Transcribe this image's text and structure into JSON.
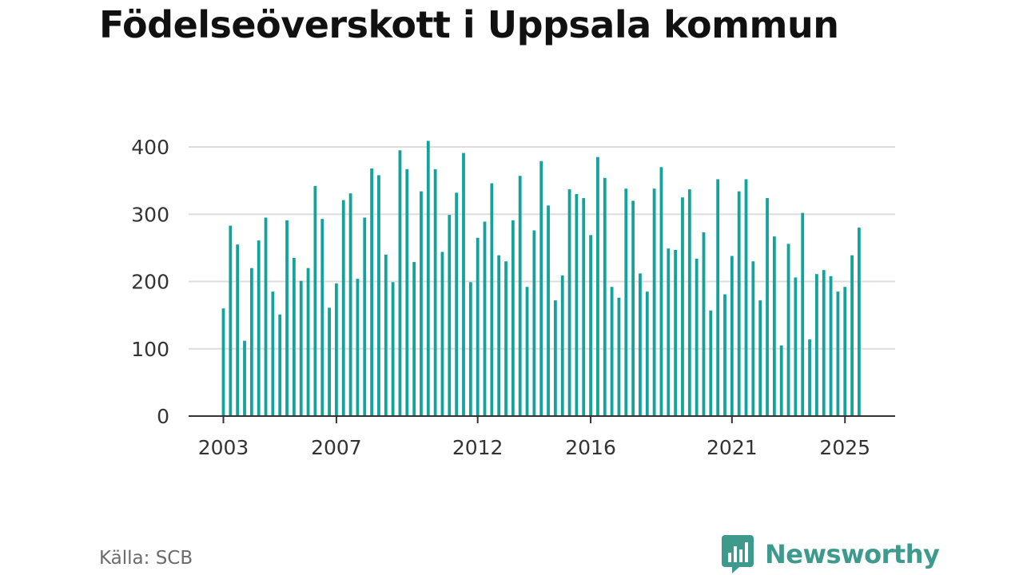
{
  "header": {
    "title": "Födelseöverskott i Uppsala kommun"
  },
  "footer": {
    "source": "Källa: SCB",
    "brand": "Newsworthy"
  },
  "colors": {
    "bar": "#14a39a",
    "grid": "#dddddd",
    "axis": "#333333",
    "brand": "#3d9a8d"
  },
  "chart_data": {
    "type": "bar",
    "title": "Födelseöverskott i Uppsala kommun",
    "xlabel": "",
    "ylabel": "",
    "ylim": [
      0,
      400
    ],
    "yticks": [
      0,
      100,
      200,
      300,
      400
    ],
    "xtick_labels": [
      "2003",
      "2007",
      "2012",
      "2016",
      "2021",
      "2025"
    ],
    "grid": true,
    "legend": "none",
    "start": "2003-01",
    "frequency": "quarterly",
    "categories": [
      "2003-Q1",
      "2003-Q2",
      "2003-Q3",
      "2003-Q4",
      "2004-Q1",
      "2004-Q2",
      "2004-Q3",
      "2004-Q4",
      "2005-Q1",
      "2005-Q2",
      "2005-Q3",
      "2005-Q4",
      "2006-Q1",
      "2006-Q2",
      "2006-Q3",
      "2006-Q4",
      "2007-Q1",
      "2007-Q2",
      "2007-Q3",
      "2007-Q4",
      "2008-Q1",
      "2008-Q2",
      "2008-Q3",
      "2008-Q4",
      "2009-Q1",
      "2009-Q2",
      "2009-Q3",
      "2009-Q4",
      "2010-Q1",
      "2010-Q2",
      "2010-Q3",
      "2010-Q4",
      "2011-Q1",
      "2011-Q2",
      "2011-Q3",
      "2011-Q4",
      "2012-Q1",
      "2012-Q2",
      "2012-Q3",
      "2012-Q4",
      "2013-Q1",
      "2013-Q2",
      "2013-Q3",
      "2013-Q4",
      "2014-Q1",
      "2014-Q2",
      "2014-Q3",
      "2014-Q4",
      "2015-Q1",
      "2015-Q2",
      "2015-Q3",
      "2015-Q4",
      "2016-Q1",
      "2016-Q2",
      "2016-Q3",
      "2016-Q4",
      "2017-Q1",
      "2017-Q2",
      "2017-Q3",
      "2017-Q4",
      "2018-Q1",
      "2018-Q2",
      "2018-Q3",
      "2018-Q4",
      "2019-Q1",
      "2019-Q2",
      "2019-Q3",
      "2019-Q4",
      "2020-Q1",
      "2020-Q2",
      "2020-Q3",
      "2020-Q4",
      "2021-Q1",
      "2021-Q2",
      "2021-Q3",
      "2021-Q4",
      "2022-Q1",
      "2022-Q2",
      "2022-Q3",
      "2022-Q4",
      "2023-Q1",
      "2023-Q2",
      "2023-Q3",
      "2023-Q4",
      "2024-Q1",
      "2024-Q2",
      "2024-Q3",
      "2024-Q4",
      "2025-Q1",
      "2025-Q2",
      "2025-Q3"
    ],
    "values": [
      160,
      283,
      255,
      112,
      220,
      261,
      295,
      185,
      151,
      291,
      235,
      201,
      220,
      342,
      293,
      161,
      197,
      321,
      331,
      204,
      295,
      368,
      358,
      240,
      199,
      395,
      367,
      229,
      334,
      409,
      367,
      244,
      299,
      332,
      391,
      199,
      265,
      289,
      346,
      239,
      230,
      291,
      357,
      192,
      276,
      379,
      313,
      172,
      209,
      337,
      330,
      324,
      269,
      385,
      354,
      192,
      176,
      338,
      320,
      212,
      185,
      338,
      370,
      249,
      247,
      325,
      337,
      234,
      273,
      157,
      352,
      181,
      238,
      334,
      352,
      230,
      172,
      324,
      267,
      105,
      256,
      206,
      302,
      114,
      211,
      217,
      208,
      185,
      192,
      239,
      280
    ]
  }
}
